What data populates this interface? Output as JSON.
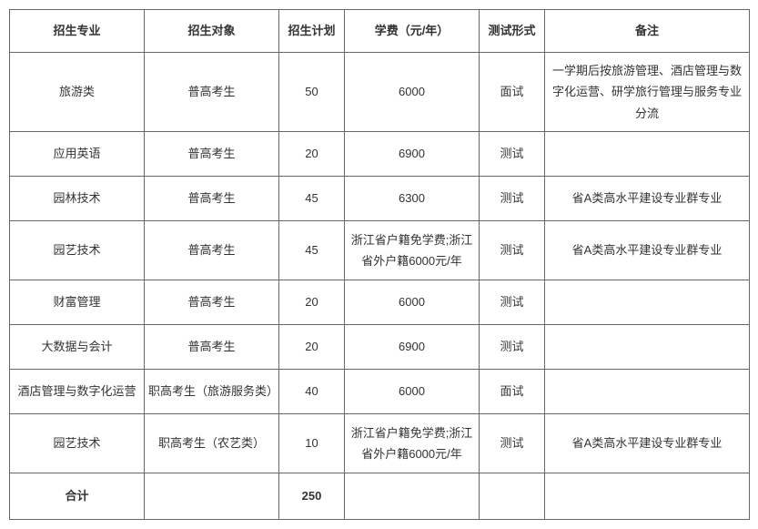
{
  "table": {
    "headers": [
      "招生专业",
      "招生对象",
      "招生计划",
      "学费（元/年）",
      "测试形式",
      "备注"
    ],
    "rows": [
      {
        "major": "旅游类",
        "target": "普高考生",
        "plan": "50",
        "fee": "6000",
        "test": "面试",
        "note": "一学期后按旅游管理、酒店管理与数字化运营、研学旅行管理与服务专业分流",
        "tall": true
      },
      {
        "major": "应用英语",
        "target": "普高考生",
        "plan": "20",
        "fee": "6900",
        "test": "测试",
        "note": "",
        "tall": false
      },
      {
        "major": "园林技术",
        "target": "普高考生",
        "plan": "45",
        "fee": "6300",
        "test": "测试",
        "note": "省A类高水平建设专业群专业",
        "tall": false
      },
      {
        "major": "园艺技术",
        "target": "普高考生",
        "plan": "45",
        "fee": "浙江省户籍免学费;浙江省外户籍6000元/年",
        "test": "测试",
        "note": "省A类高水平建设专业群专业",
        "tall": true
      },
      {
        "major": "财富管理",
        "target": "普高考生",
        "plan": "20",
        "fee": "6000",
        "test": "测试",
        "note": "",
        "tall": false
      },
      {
        "major": "大数据与会计",
        "target": "普高考生",
        "plan": "20",
        "fee": "6900",
        "test": "测试",
        "note": "",
        "tall": false
      },
      {
        "major": "酒店管理与数字化运营",
        "target": "职高考生（旅游服务类）",
        "plan": "40",
        "fee": "6000",
        "test": "面试",
        "note": "",
        "tall": false
      },
      {
        "major": "园艺技术",
        "target": "职高考生（农艺类）",
        "plan": "10",
        "fee": "浙江省户籍免学费;浙江省外户籍6000元/年",
        "test": "测试",
        "note": "省A类高水平建设专业群专业",
        "tall": true
      }
    ],
    "total": {
      "label": "合计",
      "plan": "250"
    }
  },
  "style": {
    "border_color": "#666666",
    "text_color": "#333333",
    "background": "#ffffff",
    "font_size": 13,
    "header_weight": "bold"
  }
}
